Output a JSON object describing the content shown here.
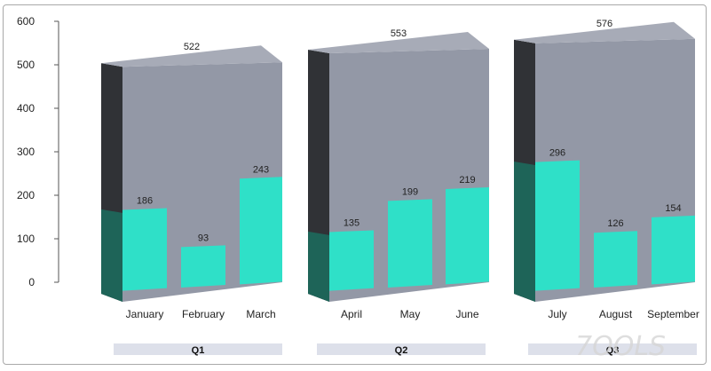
{
  "chart_data": {
    "type": "bar",
    "ylim": [
      0,
      600
    ],
    "yticks": [
      0,
      100,
      200,
      300,
      400,
      500,
      600
    ],
    "groups": [
      {
        "label": "Q1",
        "total": 522,
        "months": [
          {
            "name": "January",
            "value": 186
          },
          {
            "name": "February",
            "value": 93
          },
          {
            "name": "March",
            "value": 243
          }
        ]
      },
      {
        "label": "Q2",
        "total": 553,
        "months": [
          {
            "name": "April",
            "value": 135
          },
          {
            "name": "May",
            "value": 199
          },
          {
            "name": "June",
            "value": 219
          }
        ]
      },
      {
        "label": "Q3",
        "total": 576,
        "months": [
          {
            "name": "July",
            "value": 296
          },
          {
            "name": "August",
            "value": 126
          },
          {
            "name": "September",
            "value": 154
          }
        ]
      }
    ],
    "colors": {
      "total_front": "#9398a6",
      "total_top": "#a7abb7",
      "total_side": "#303236",
      "month_front": "#2fe0c8",
      "month_side": "#1e6458",
      "group_band": "#dde0ea"
    }
  },
  "watermark": "7OOLS"
}
